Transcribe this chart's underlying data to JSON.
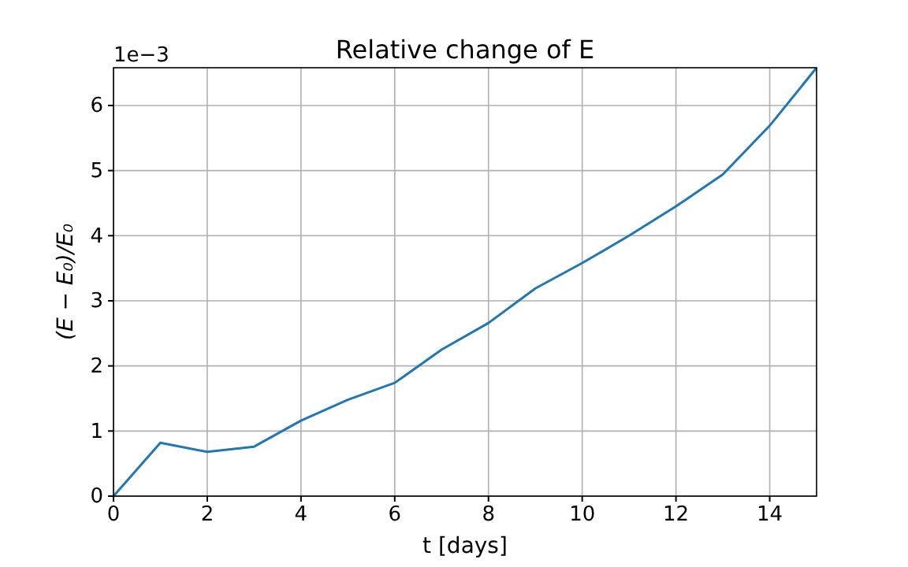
{
  "chart_data": {
    "type": "line",
    "title": "Relative change of E",
    "xlabel": "t [days]",
    "ylabel": "(E − E₀)/E₀",
    "annotations": [
      "1e−3"
    ],
    "x": [
      0,
      1,
      2,
      3,
      4,
      5,
      6,
      7,
      8,
      9,
      10,
      11,
      12,
      13,
      14,
      15
    ],
    "series": [
      {
        "color": "#1f77b4",
        "values": [
          0,
          0.82,
          0.68,
          0.76,
          1.16,
          1.48,
          1.74,
          2.25,
          2.66,
          3.19,
          3.58,
          4.0,
          4.45,
          4.94,
          5.69,
          6.58
        ]
      }
    ],
    "xlim": [
      0,
      15
    ],
    "xticks": [
      0,
      2,
      4,
      6,
      8,
      10,
      12,
      14
    ],
    "ylim": [
      0,
      6.58
    ],
    "yticks": [
      0,
      1,
      2,
      3,
      4,
      5,
      6
    ],
    "grid": true,
    "marker": "none",
    "line_style": "solid"
  }
}
